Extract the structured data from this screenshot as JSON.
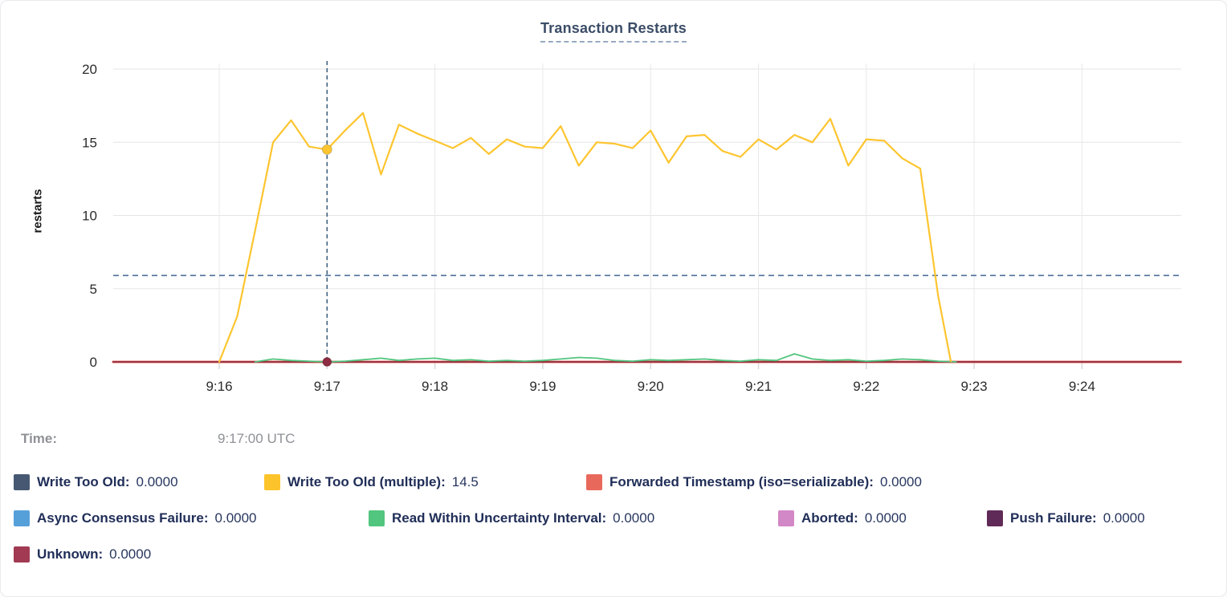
{
  "time_row": {
    "label": "Time:",
    "value": "9:17:00 UTC"
  },
  "legend": {
    "items": [
      {
        "label": "Write Too Old:",
        "value": "0.0000",
        "color": "#475872"
      },
      {
        "label": "Write Too Old (multiple):",
        "value": "14.5",
        "color": "#fdc32a"
      },
      {
        "label": "Forwarded Timestamp (iso=serializable):",
        "value": "0.0000",
        "color": "#e8695c"
      },
      {
        "label": "Async Consensus Failure:",
        "value": "0.0000",
        "color": "#56a0da"
      },
      {
        "label": "Read Within Uncertainty Interval:",
        "value": "0.0000",
        "color": "#52c57e"
      },
      {
        "label": "Aborted:",
        "value": "0.0000",
        "color": "#d287c6"
      },
      {
        "label": "Push Failure:",
        "value": "0.0000",
        "color": "#602a58"
      },
      {
        "label": "Unknown:",
        "value": "0.0000",
        "color": "#a13a52"
      }
    ]
  },
  "chart_data": {
    "type": "line",
    "title": "Transaction Restarts",
    "ylabel": "restarts",
    "ylim": [
      0,
      20
    ],
    "y_ticks": [
      0,
      5,
      10,
      15,
      20
    ],
    "x_ticks": [
      "9:16",
      "9:17",
      "9:18",
      "9:19",
      "9:20",
      "9:21",
      "9:22",
      "9:23",
      "9:24"
    ],
    "x_domain": {
      "start": "9:15:01",
      "end": "9:24:55"
    },
    "grid": true,
    "threshold_line": {
      "value": 5.9,
      "style": "dashed",
      "color": "#4c6f9b"
    },
    "hover": {
      "time": "9:17:00",
      "points": [
        {
          "series": "Write Too Old (multiple)",
          "value": 14.5
        },
        {
          "series": "Unknown",
          "value": 0
        }
      ]
    },
    "series": [
      {
        "name": "Write Too Old",
        "color": "#475872",
        "width": 1.5,
        "points": [
          [
            "9:15:01",
            0
          ],
          [
            "9:24:55",
            0
          ]
        ]
      },
      {
        "name": "Async Consensus Failure",
        "color": "#56a0da",
        "width": 1.5,
        "points": [
          [
            "9:15:01",
            0
          ],
          [
            "9:24:55",
            0
          ]
        ]
      },
      {
        "name": "Aborted",
        "color": "#d287c6",
        "width": 1.5,
        "points": [
          [
            "9:15:01",
            0
          ],
          [
            "9:24:55",
            0
          ]
        ]
      },
      {
        "name": "Push Failure",
        "color": "#602a58",
        "width": 1.5,
        "points": [
          [
            "9:15:01",
            0
          ],
          [
            "9:24:55",
            0
          ]
        ]
      },
      {
        "name": "Forwarded Timestamp (iso=serializable)",
        "color": "#e8695c",
        "width": 3,
        "points": [
          [
            "9:15:01",
            0
          ],
          [
            "9:24:55",
            0
          ]
        ]
      },
      {
        "name": "Unknown",
        "color": "#8d2c42",
        "width": 1.8,
        "points": [
          [
            "9:15:01",
            0
          ],
          [
            "9:24:55",
            0
          ]
        ]
      },
      {
        "name": "Read Within Uncertainty Interval",
        "color": "#52c57e",
        "width": 1.8,
        "points": [
          [
            "9:16:20",
            0.0
          ],
          [
            "9:16:30",
            0.2
          ],
          [
            "9:16:40",
            0.1
          ],
          [
            "9:16:50",
            0.05
          ],
          [
            "9:17:00",
            0.0
          ],
          [
            "9:17:10",
            0.05
          ],
          [
            "9:17:20",
            0.15
          ],
          [
            "9:17:30",
            0.25
          ],
          [
            "9:17:40",
            0.1
          ],
          [
            "9:17:50",
            0.2
          ],
          [
            "9:18:00",
            0.25
          ],
          [
            "9:18:10",
            0.1
          ],
          [
            "9:18:20",
            0.15
          ],
          [
            "9:18:30",
            0.05
          ],
          [
            "9:18:40",
            0.1
          ],
          [
            "9:18:50",
            0.05
          ],
          [
            "9:19:00",
            0.1
          ],
          [
            "9:19:10",
            0.2
          ],
          [
            "9:19:20",
            0.3
          ],
          [
            "9:19:30",
            0.25
          ],
          [
            "9:19:40",
            0.1
          ],
          [
            "9:19:50",
            0.05
          ],
          [
            "9:20:00",
            0.15
          ],
          [
            "9:20:10",
            0.1
          ],
          [
            "9:20:20",
            0.15
          ],
          [
            "9:20:30",
            0.2
          ],
          [
            "9:20:40",
            0.1
          ],
          [
            "9:20:50",
            0.05
          ],
          [
            "9:21:00",
            0.15
          ],
          [
            "9:21:10",
            0.1
          ],
          [
            "9:21:20",
            0.55
          ],
          [
            "9:21:30",
            0.2
          ],
          [
            "9:21:40",
            0.1
          ],
          [
            "9:21:50",
            0.15
          ],
          [
            "9:22:00",
            0.05
          ],
          [
            "9:22:10",
            0.1
          ],
          [
            "9:22:20",
            0.2
          ],
          [
            "9:22:30",
            0.15
          ],
          [
            "9:22:40",
            0.05
          ],
          [
            "9:22:50",
            0.0
          ]
        ]
      },
      {
        "name": "Write Too Old (multiple)",
        "color": "#fdc52f",
        "width": 2.2,
        "points": [
          [
            "9:16:00",
            0.0
          ],
          [
            "9:16:10",
            3.1
          ],
          [
            "9:16:20",
            9.0
          ],
          [
            "9:16:30",
            15.0
          ],
          [
            "9:16:40",
            16.5
          ],
          [
            "9:16:50",
            14.7
          ],
          [
            "9:17:00",
            14.5
          ],
          [
            "9:17:10",
            15.8
          ],
          [
            "9:17:20",
            17.0
          ],
          [
            "9:17:30",
            12.8
          ],
          [
            "9:17:40",
            16.2
          ],
          [
            "9:17:50",
            15.6
          ],
          [
            "9:18:00",
            15.1
          ],
          [
            "9:18:10",
            14.6
          ],
          [
            "9:18:20",
            15.3
          ],
          [
            "9:18:30",
            14.2
          ],
          [
            "9:18:40",
            15.2
          ],
          [
            "9:18:50",
            14.7
          ],
          [
            "9:19:00",
            14.6
          ],
          [
            "9:19:10",
            16.1
          ],
          [
            "9:19:20",
            13.4
          ],
          [
            "9:19:30",
            15.0
          ],
          [
            "9:19:40",
            14.9
          ],
          [
            "9:19:50",
            14.6
          ],
          [
            "9:20:00",
            15.8
          ],
          [
            "9:20:10",
            13.6
          ],
          [
            "9:20:20",
            15.4
          ],
          [
            "9:20:30",
            15.5
          ],
          [
            "9:20:40",
            14.4
          ],
          [
            "9:20:50",
            14.0
          ],
          [
            "9:21:00",
            15.2
          ],
          [
            "9:21:10",
            14.5
          ],
          [
            "9:21:20",
            15.5
          ],
          [
            "9:21:30",
            15.0
          ],
          [
            "9:21:40",
            16.6
          ],
          [
            "9:21:50",
            13.4
          ],
          [
            "9:22:00",
            15.2
          ],
          [
            "9:22:10",
            15.1
          ],
          [
            "9:22:20",
            13.9
          ],
          [
            "9:22:30",
            13.2
          ],
          [
            "9:22:40",
            4.5
          ],
          [
            "9:22:47",
            0.05
          ]
        ]
      }
    ]
  }
}
